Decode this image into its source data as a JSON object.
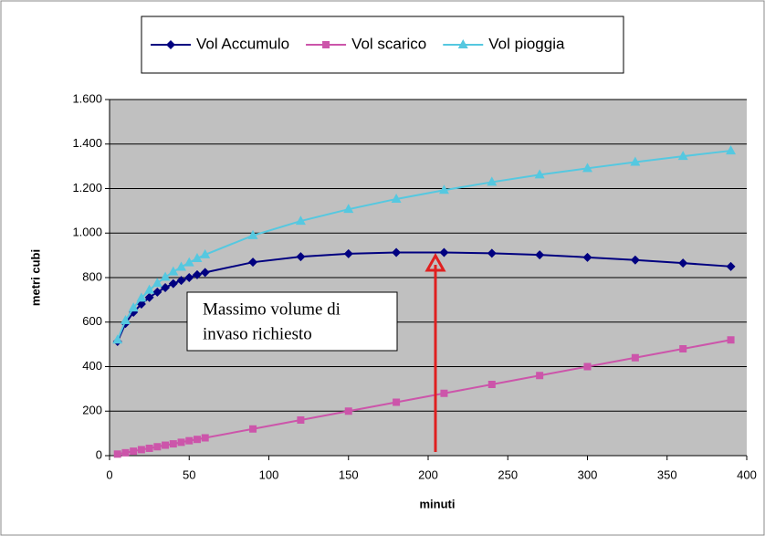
{
  "chart_data": {
    "type": "line",
    "x_label": "minuti",
    "y_label": "metri cubi",
    "x": [
      5,
      10,
      15,
      20,
      25,
      30,
      35,
      40,
      45,
      50,
      55,
      60,
      90,
      120,
      150,
      180,
      210,
      240,
      270,
      300,
      330,
      360,
      390
    ],
    "series": [
      {
        "name": "Vol Accumulo",
        "color": "#000080",
        "marker": "diamond",
        "values": [
          513,
          594,
          644,
          681,
          711,
          735,
          755,
          773,
          787,
          800,
          813,
          823,
          869,
          894,
          907,
          913,
          913,
          909,
          902,
          891,
          879,
          865,
          850
        ]
      },
      {
        "name": "Vol scarico",
        "color": "#cc55aa",
        "marker": "square",
        "values": [
          7,
          13,
          20,
          27,
          33,
          40,
          47,
          53,
          60,
          67,
          73,
          80,
          120,
          160,
          200,
          240,
          280,
          320,
          360,
          400,
          440,
          480,
          520
        ]
      },
      {
        "name": "Vol pioggia",
        "color": "#55c8e0",
        "marker": "triangle",
        "values": [
          520,
          607,
          664,
          708,
          744,
          775,
          802,
          826,
          847,
          867,
          886,
          903,
          989,
          1054,
          1107,
          1153,
          1193,
          1229,
          1262,
          1291,
          1319,
          1345,
          1370
        ]
      }
    ],
    "xlim": [
      0,
      400
    ],
    "xticks": [
      0,
      50,
      100,
      150,
      200,
      250,
      300,
      350,
      400
    ],
    "ylim": [
      0,
      1600
    ],
    "yticks": [
      0,
      200,
      400,
      600,
      800,
      {
        "value": 1000,
        "label": "1.000"
      },
      {
        "value": 1200,
        "label": "1.200"
      },
      {
        "value": 1400,
        "label": "1.400"
      },
      {
        "value": 1600,
        "label": "1.600"
      }
    ],
    "grid": true,
    "legend": "top",
    "annotation": {
      "lines": [
        "Massimo volume di",
        "invaso richiesto"
      ]
    }
  }
}
